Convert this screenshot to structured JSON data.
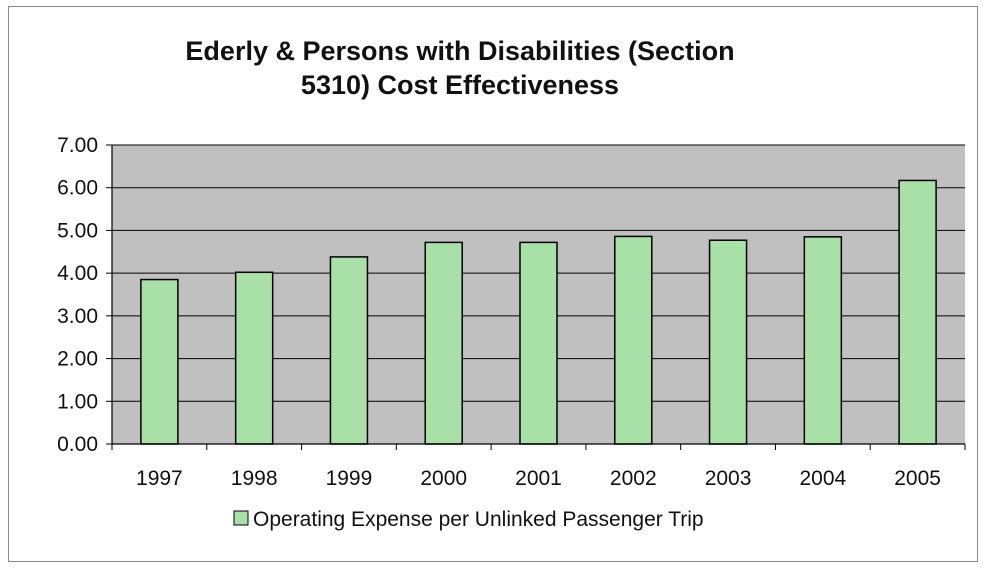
{
  "chart_data": {
    "type": "bar",
    "title_lines": [
      "Ederly & Persons with Disabilities (Section",
      "5310) Cost Effectiveness"
    ],
    "categories": [
      "1997",
      "1998",
      "1999",
      "2000",
      "2001",
      "2002",
      "2003",
      "2004",
      "2005"
    ],
    "series": [
      {
        "name": "Operating Expense per Unlinked Passenger Trip",
        "values": [
          3.85,
          4.02,
          4.38,
          4.72,
          4.72,
          4.86,
          4.77,
          4.85,
          6.17
        ],
        "color": "#a8e0a8"
      }
    ],
    "y_tick_labels": [
      "0.00",
      "1.00",
      "2.00",
      "3.00",
      "4.00",
      "5.00",
      "6.00",
      "7.00"
    ],
    "ylim": [
      0,
      7
    ],
    "grid": true,
    "legend_position": "bottom",
    "plot_background": "#c0c0c0",
    "bar_outline": "#000000"
  }
}
